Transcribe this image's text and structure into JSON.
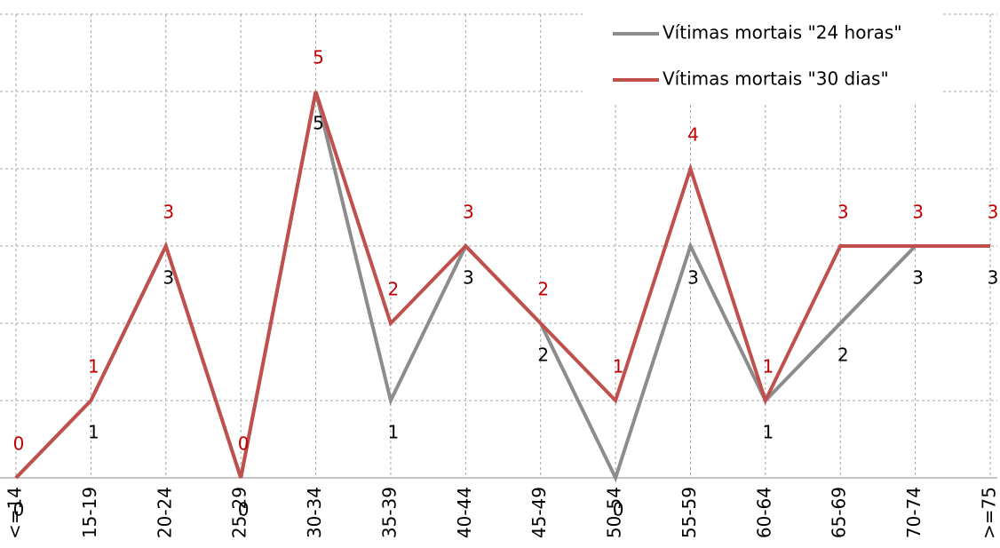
{
  "chart_data": {
    "type": "line",
    "categories": [
      "<=14",
      "15-19",
      "20-24",
      "25-29",
      "30-34",
      "35-39",
      "40-44",
      "45-49",
      "50-54",
      "55-59",
      "60-64",
      "65-69",
      "70-74",
      ">=75"
    ],
    "series": [
      {
        "name": "Vítimas mortais \"24 horas\"",
        "color": "#8c8c8c",
        "label_color": "#000000",
        "label_position": "below",
        "values": [
          0,
          1,
          3,
          0,
          5,
          1,
          3,
          2,
          0,
          3,
          1,
          2,
          3,
          3
        ]
      },
      {
        "name": "Vítimas mortais \"30 dias\"",
        "color": "#c0504d",
        "label_color": "#c00000",
        "label_position": "above",
        "values": [
          0,
          1,
          3,
          0,
          5,
          2,
          3,
          2,
          1,
          4,
          1,
          3,
          3,
          3
        ]
      }
    ],
    "ylim": [
      0,
      6
    ],
    "grid_lines": [
      0,
      1,
      2,
      3,
      4,
      5,
      6
    ],
    "grid": true,
    "legend": "top-right"
  }
}
